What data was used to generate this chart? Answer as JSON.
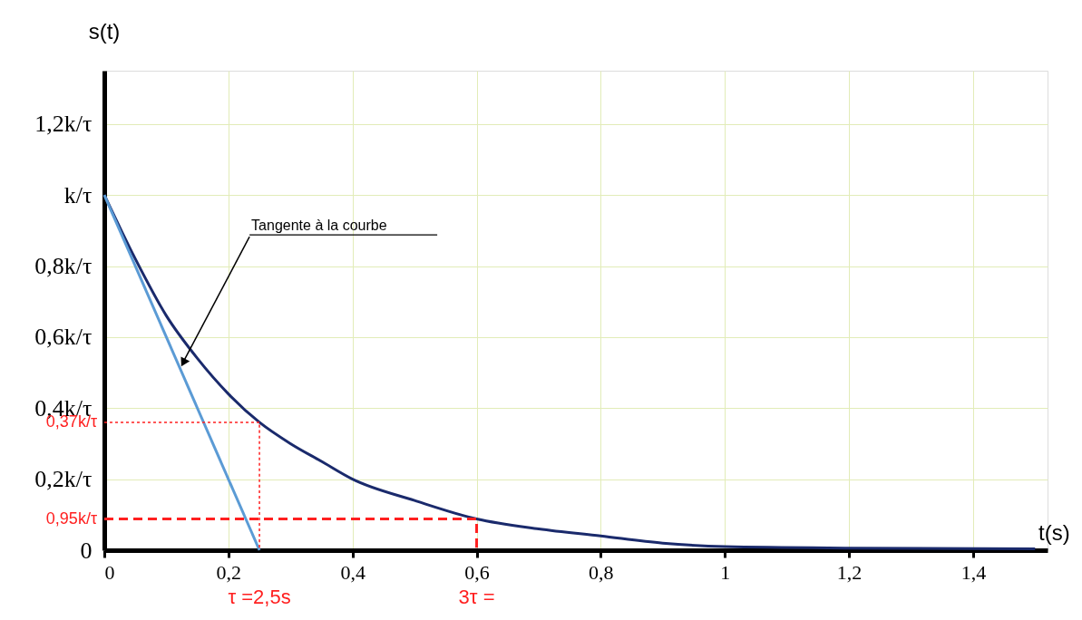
{
  "chart_data": {
    "type": "line",
    "xlabel": "t(s)",
    "ylabel": "s(t)",
    "xlim": [
      0,
      1.52
    ],
    "ylim": [
      0,
      1.35
    ],
    "xticks": [
      {
        "value": 0,
        "label": "0"
      },
      {
        "value": 0.2,
        "label": "0,2"
      },
      {
        "value": 0.4,
        "label": "0,4"
      },
      {
        "value": 0.6,
        "label": "0,6"
      },
      {
        "value": 0.8,
        "label": "0,8"
      },
      {
        "value": 1,
        "label": "1"
      },
      {
        "value": 1.2,
        "label": "1,2"
      },
      {
        "value": 1.4,
        "label": "1,4"
      }
    ],
    "yticks": [
      {
        "value": 0,
        "label": "0"
      },
      {
        "value": 0.2,
        "label": "0,2k/τ"
      },
      {
        "value": 0.4,
        "label": "0,4k/τ"
      },
      {
        "value": 0.6,
        "label": "0,6k/τ"
      },
      {
        "value": 0.8,
        "label": "0,8k/τ"
      },
      {
        "value": 1,
        "label": "k/τ"
      },
      {
        "value": 1.2,
        "label": "1,2k/τ"
      }
    ],
    "grid": true,
    "marker": "none",
    "series": [
      {
        "color": "#1a2a6c",
        "line_style": "solid",
        "x": [
          0,
          0.05,
          0.1,
          0.15,
          0.2,
          0.25,
          0.3,
          0.35,
          0.4,
          0.5,
          0.6,
          0.7,
          0.8,
          0.9,
          1.0,
          1.2,
          1.5
        ],
        "values": [
          1,
          0.82,
          0.66,
          0.54,
          0.44,
          0.36,
          0.3,
          0.25,
          0.2,
          0.14,
          0.088,
          0.06,
          0.04,
          0.02,
          0.01,
          0.006,
          0.004
        ]
      },
      {
        "color": "#5b9bd5",
        "line_style": "solid",
        "x": [
          0,
          0.25
        ],
        "values": [
          1,
          0
        ]
      },
      {
        "color": "#ff2020",
        "line_style": "dotted",
        "x": [
          0,
          0.25,
          0.25
        ],
        "values": [
          0.36,
          0.36,
          0
        ]
      },
      {
        "color": "#ff2020",
        "line_style": "dashed",
        "x": [
          0,
          0.6,
          0.6
        ],
        "values": [
          0.088,
          0.088,
          0
        ]
      }
    ],
    "annotations": [
      {
        "text": "Tangente à la courbe",
        "x": 0.12,
        "y": 0.51
      },
      {
        "text": "0,37k/τ",
        "x": 0,
        "y": 0.36
      },
      {
        "text": "0,95k/τ",
        "x": 0,
        "y": 0.088
      },
      {
        "text": "τ =2,5s",
        "x": 0.25,
        "y": 0
      },
      {
        "text": "3τ =",
        "x": 0.6,
        "y": 0
      }
    ]
  }
}
